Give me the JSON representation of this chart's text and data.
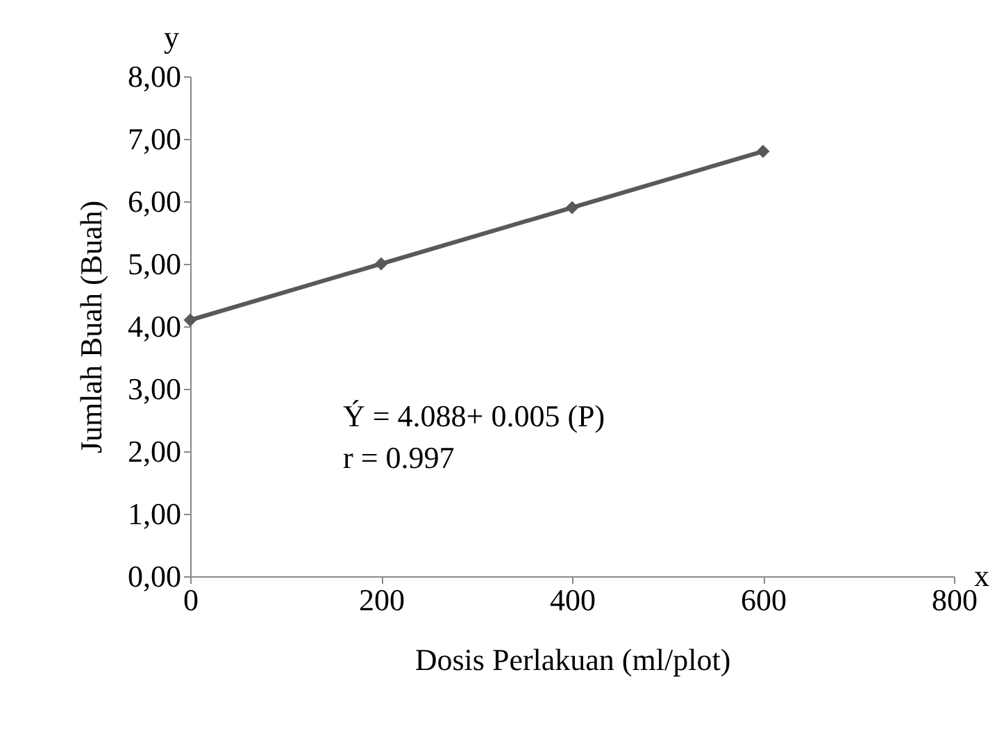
{
  "chart_data": {
    "type": "line",
    "xlabel": "Dosis Perlakuan (ml/plot)",
    "ylabel": "Jumlah Buah (Buah)",
    "x": [
      0,
      200,
      400,
      600
    ],
    "series": [
      {
        "color": "#595959",
        "values": [
          4.1,
          5.0,
          5.9,
          6.8
        ]
      }
    ],
    "xlim": [
      0,
      800
    ],
    "xticks": [
      0,
      200,
      400,
      600,
      800
    ],
    "ylim": [
      0,
      8
    ],
    "yticks": [
      {
        "value": 0,
        "label": "0,00"
      },
      {
        "value": 1,
        "label": "1,00"
      },
      {
        "value": 2,
        "label": "2,00"
      },
      {
        "value": 3,
        "label": "3,00"
      },
      {
        "value": 4,
        "label": "4,00"
      },
      {
        "value": 5,
        "label": "5,00"
      },
      {
        "value": 6,
        "label": "6,00"
      },
      {
        "value": 7,
        "label": "7,00"
      },
      {
        "value": 8,
        "label": "8,00"
      }
    ],
    "marker": "diamond",
    "line_style": "solid",
    "grid": false,
    "annotations": [
      "y",
      "x",
      "Ý = 4.088+ 0.005 (P)",
      "r = 0.997"
    ]
  }
}
